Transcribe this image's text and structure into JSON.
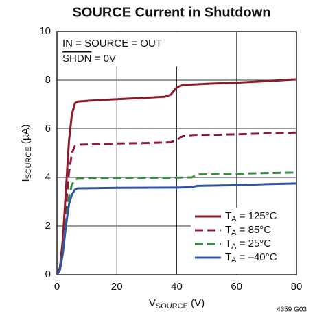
{
  "chart_data": {
    "type": "line",
    "title": "SOURCE Current in Shutdown",
    "ylabel": [
      "I",
      "SOURCE",
      " (µA)"
    ],
    "xlabel": [
      "V",
      "SOURCE",
      " (V)"
    ],
    "annotations": [
      "IN = SOURCE = OUT",
      {
        "over": "SHDN",
        "rest": " = 0V"
      }
    ],
    "footnote": "4359 G03",
    "xlim": [
      0,
      80
    ],
    "xticks": [
      0,
      20,
      40,
      60,
      80
    ],
    "ylim": [
      0,
      10
    ],
    "yticks": [
      0,
      2,
      4,
      6,
      8,
      10
    ],
    "grid": true,
    "legend": "lower right",
    "series": [
      {
        "name": "TA = 125°C",
        "color": "#8e1b2c",
        "dash": false,
        "x": [
          0,
          1,
          2,
          3,
          4,
          5,
          6,
          7,
          10,
          20,
          30,
          36,
          38,
          40,
          42,
          50,
          60,
          70,
          80
        ],
        "values": [
          0,
          0.3,
          1.5,
          3.5,
          5.5,
          6.6,
          7.05,
          7.12,
          7.15,
          7.22,
          7.28,
          7.32,
          7.4,
          7.7,
          7.8,
          7.85,
          7.9,
          7.96,
          8.03
        ]
      },
      {
        "name": "TA = 85°C",
        "color": "#8e1b3c",
        "dash": true,
        "x": [
          0,
          1,
          2,
          3,
          4,
          5,
          6,
          7,
          20,
          30,
          38,
          40,
          42,
          50,
          60,
          70,
          80
        ],
        "values": [
          0,
          0.3,
          1.2,
          2.8,
          4.2,
          5.0,
          5.3,
          5.35,
          5.4,
          5.42,
          5.45,
          5.55,
          5.7,
          5.75,
          5.78,
          5.82,
          5.85
        ]
      },
      {
        "name": "TA = 25°C",
        "color": "#3b8c3e",
        "dash": true,
        "x": [
          0,
          1,
          2,
          3,
          4,
          5,
          6,
          7,
          20,
          40,
          45,
          47,
          60,
          70,
          80
        ],
        "values": [
          0,
          0.2,
          1,
          2.2,
          3.2,
          3.7,
          3.9,
          3.95,
          3.97,
          3.99,
          4.0,
          4.12,
          4.15,
          4.18,
          4.2
        ]
      },
      {
        "name": "TA = –40°C",
        "color": "#2f56a6",
        "dash": false,
        "x": [
          0,
          1,
          2,
          3,
          4,
          5,
          6,
          7,
          20,
          40,
          45,
          47,
          60,
          70,
          80
        ],
        "values": [
          0,
          0.2,
          0.9,
          2,
          2.9,
          3.3,
          3.5,
          3.55,
          3.57,
          3.58,
          3.6,
          3.65,
          3.68,
          3.72,
          3.75
        ]
      }
    ]
  }
}
